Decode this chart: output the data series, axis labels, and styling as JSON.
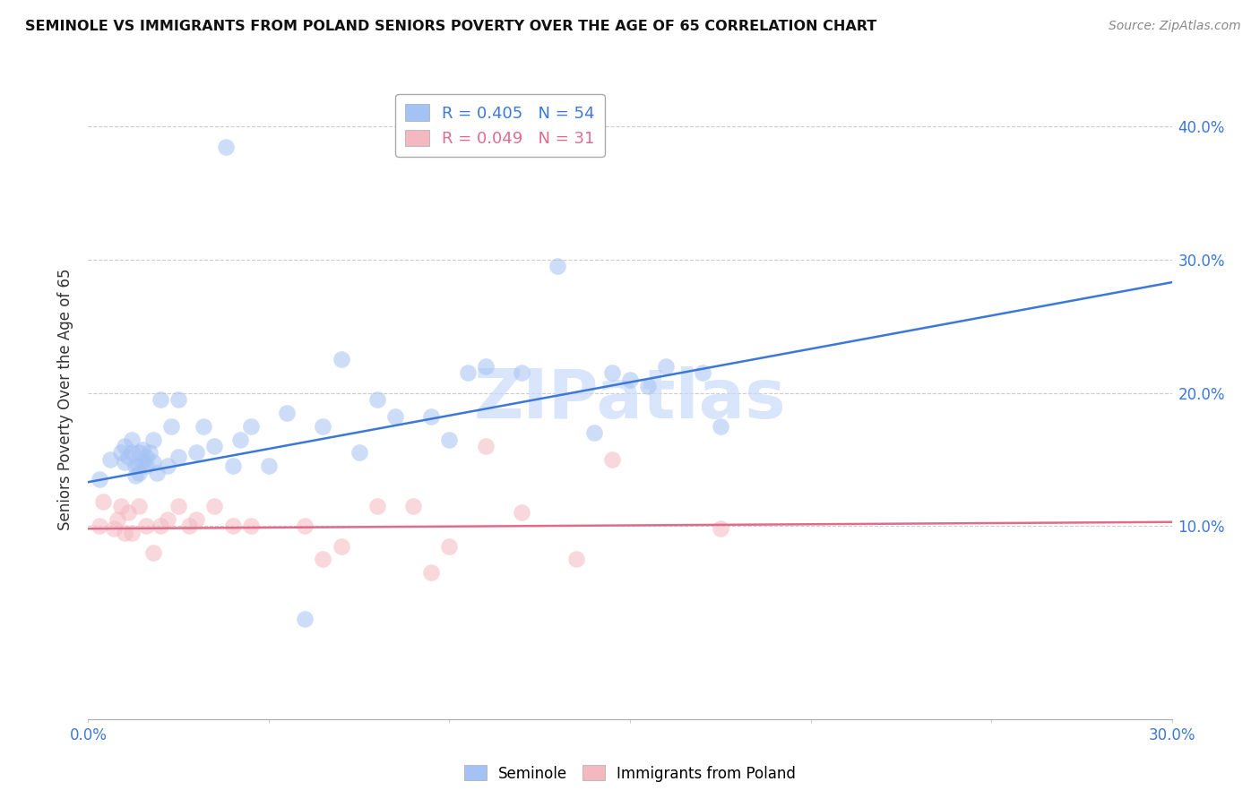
{
  "title": "SEMINOLE VS IMMIGRANTS FROM POLAND SENIORS POVERTY OVER THE AGE OF 65 CORRELATION CHART",
  "source": "Source: ZipAtlas.com",
  "ylabel": "Seniors Poverty Over the Age of 65",
  "xlim": [
    0.0,
    0.3
  ],
  "ylim": [
    -0.045,
    0.435
  ],
  "yticks": [
    0.1,
    0.2,
    0.3,
    0.4
  ],
  "xticks": [
    0.0,
    0.05,
    0.1,
    0.15,
    0.2,
    0.25,
    0.3
  ],
  "ytick_labels": [
    "10.0%",
    "20.0%",
    "30.0%",
    "40.0%"
  ],
  "blue_R": 0.405,
  "blue_N": 54,
  "pink_R": 0.049,
  "pink_N": 31,
  "blue_color": "#a4c2f4",
  "pink_color": "#f4b8c1",
  "blue_line_color": "#3c78d8",
  "pink_line_color": "#e06c8c",
  "watermark": "ZIPatlas",
  "watermark_color": "#c9daf8",
  "legend_label_blue": "Seminole",
  "legend_label_pink": "Immigrants from Poland",
  "blue_line_x0": 0.0,
  "blue_line_y0": 0.133,
  "blue_line_x1": 0.3,
  "blue_line_y1": 0.283,
  "pink_line_x0": 0.0,
  "pink_line_y0": 0.098,
  "pink_line_x1": 0.3,
  "pink_line_y1": 0.103,
  "blue_scatter_x": [
    0.003,
    0.006,
    0.009,
    0.01,
    0.01,
    0.011,
    0.012,
    0.012,
    0.013,
    0.013,
    0.014,
    0.014,
    0.014,
    0.015,
    0.015,
    0.016,
    0.016,
    0.017,
    0.018,
    0.018,
    0.019,
    0.02,
    0.022,
    0.023,
    0.025,
    0.025,
    0.03,
    0.032,
    0.035,
    0.038,
    0.04,
    0.042,
    0.045,
    0.05,
    0.055,
    0.06,
    0.065,
    0.07,
    0.075,
    0.08,
    0.085,
    0.095,
    0.1,
    0.105,
    0.11,
    0.12,
    0.13,
    0.14,
    0.145,
    0.15,
    0.155,
    0.16,
    0.17,
    0.175
  ],
  "blue_scatter_y": [
    0.135,
    0.15,
    0.155,
    0.148,
    0.16,
    0.152,
    0.155,
    0.165,
    0.138,
    0.145,
    0.14,
    0.145,
    0.155,
    0.148,
    0.157,
    0.145,
    0.152,
    0.155,
    0.148,
    0.165,
    0.14,
    0.195,
    0.145,
    0.175,
    0.152,
    0.195,
    0.155,
    0.175,
    0.16,
    0.385,
    0.145,
    0.165,
    0.175,
    0.145,
    0.185,
    0.03,
    0.175,
    0.225,
    0.155,
    0.195,
    0.182,
    0.182,
    0.165,
    0.215,
    0.22,
    0.215,
    0.295,
    0.17,
    0.215,
    0.21,
    0.205,
    0.22,
    0.215,
    0.175
  ],
  "pink_scatter_x": [
    0.003,
    0.004,
    0.007,
    0.008,
    0.009,
    0.01,
    0.011,
    0.012,
    0.014,
    0.016,
    0.018,
    0.02,
    0.022,
    0.025,
    0.028,
    0.03,
    0.035,
    0.04,
    0.045,
    0.06,
    0.065,
    0.07,
    0.08,
    0.09,
    0.095,
    0.1,
    0.11,
    0.12,
    0.135,
    0.145,
    0.175
  ],
  "pink_scatter_y": [
    0.1,
    0.118,
    0.098,
    0.105,
    0.115,
    0.095,
    0.11,
    0.095,
    0.115,
    0.1,
    0.08,
    0.1,
    0.105,
    0.115,
    0.1,
    0.105,
    0.115,
    0.1,
    0.1,
    0.1,
    0.075,
    0.085,
    0.115,
    0.115,
    0.065,
    0.085,
    0.16,
    0.11,
    0.075,
    0.15,
    0.098
  ]
}
